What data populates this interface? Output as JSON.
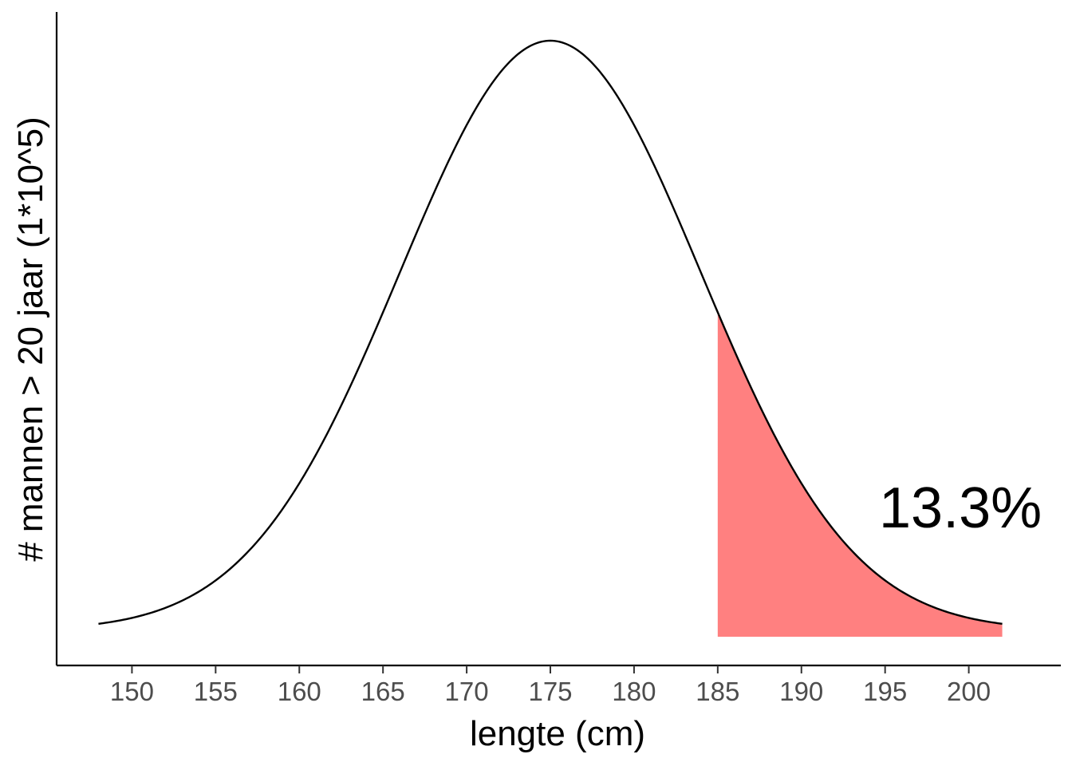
{
  "chart_data": {
    "type": "area",
    "xlabel": "lengte (cm)",
    "ylabel": "# mannen > 20 jaar (1*10^5)",
    "xlim": [
      145.5,
      205.5
    ],
    "x_ticks": [
      150,
      155,
      160,
      165,
      170,
      175,
      180,
      185,
      190,
      195,
      200
    ],
    "y_ticks": [],
    "grid": false,
    "curve": {
      "distribution": "normal",
      "mean": 175,
      "sd": 9,
      "x_range": [
        148,
        202
      ],
      "peak_height": 1.0,
      "color": "#000000"
    },
    "shaded_region": {
      "x_from": 185,
      "x_to": 202,
      "color": "#ff8080"
    },
    "annotation": {
      "text": "13.3%",
      "x": 199.5,
      "y": 0.21
    }
  }
}
